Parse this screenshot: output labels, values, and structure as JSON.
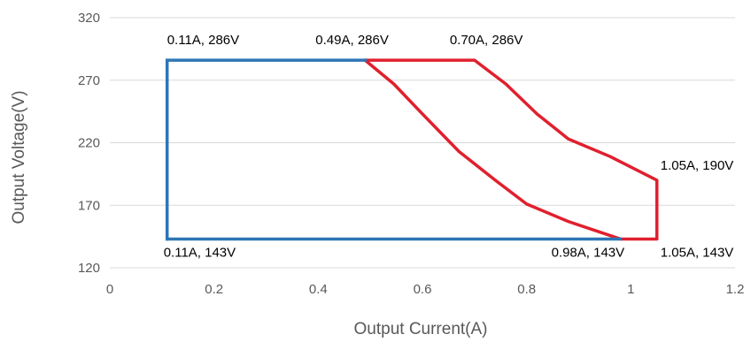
{
  "chart_data": {
    "type": "line",
    "xlabel": "Output Current(A)",
    "ylabel": "Output Voltage(V)",
    "xlim": [
      0,
      1.2
    ],
    "ylim": [
      120,
      320
    ],
    "x_ticks": [
      0,
      0.2,
      0.4,
      0.6,
      0.8,
      1,
      1.2
    ],
    "x_tick_labels": [
      "0",
      "0.2",
      "0.4",
      "0.6",
      "0.8",
      "1",
      "1.2"
    ],
    "y_ticks": [
      120,
      170,
      220,
      270,
      320
    ],
    "y_tick_labels": [
      "120",
      "170",
      "220",
      "270",
      "320"
    ],
    "grid": "horizontal",
    "legend": "none",
    "series": [
      {
        "color": "#2e75b6",
        "points": [
          [
            0.11,
            143
          ],
          [
            0.11,
            286
          ],
          [
            0.49,
            286
          ],
          [
            0.49,
            286
          ],
          [
            0.98,
            143
          ],
          [
            0.11,
            143
          ]
        ]
      },
      {
        "color": "#e0202e",
        "points": [
          [
            0.49,
            286
          ],
          [
            0.545,
            267
          ],
          [
            0.6,
            243
          ],
          [
            0.67,
            213
          ],
          [
            0.74,
            190
          ],
          [
            0.8,
            171
          ],
          [
            0.88,
            157
          ],
          [
            0.98,
            143
          ],
          [
            1.05,
            143
          ],
          [
            1.05,
            190
          ],
          [
            0.96,
            209
          ],
          [
            0.88,
            223
          ],
          [
            0.82,
            243
          ],
          [
            0.76,
            267
          ],
          [
            0.7,
            286
          ],
          [
            0.49,
            286
          ]
        ]
      }
    ],
    "blue_outline": [
      [
        0.11,
        143
      ],
      [
        0.11,
        286
      ],
      [
        0.49,
        286
      ]
    ],
    "blue_bottom": [
      [
        0.11,
        143
      ],
      [
        0.98,
        143
      ]
    ],
    "annotations": [
      {
        "text": "0.11A, 286V",
        "x": 0.11,
        "y": 286
      },
      {
        "text": "0.49A, 286V",
        "x": 0.49,
        "y": 286
      },
      {
        "text": "0.70A, 286V",
        "x": 0.7,
        "y": 286
      },
      {
        "text": "1.05A, 190V",
        "x": 1.05,
        "y": 190
      },
      {
        "text": "0.11A, 143V",
        "x": 0.11,
        "y": 143
      },
      {
        "text": "0.98A, 143V",
        "x": 0.98,
        "y": 143
      },
      {
        "text": "1.05A, 143V",
        "x": 1.05,
        "y": 143
      }
    ]
  }
}
